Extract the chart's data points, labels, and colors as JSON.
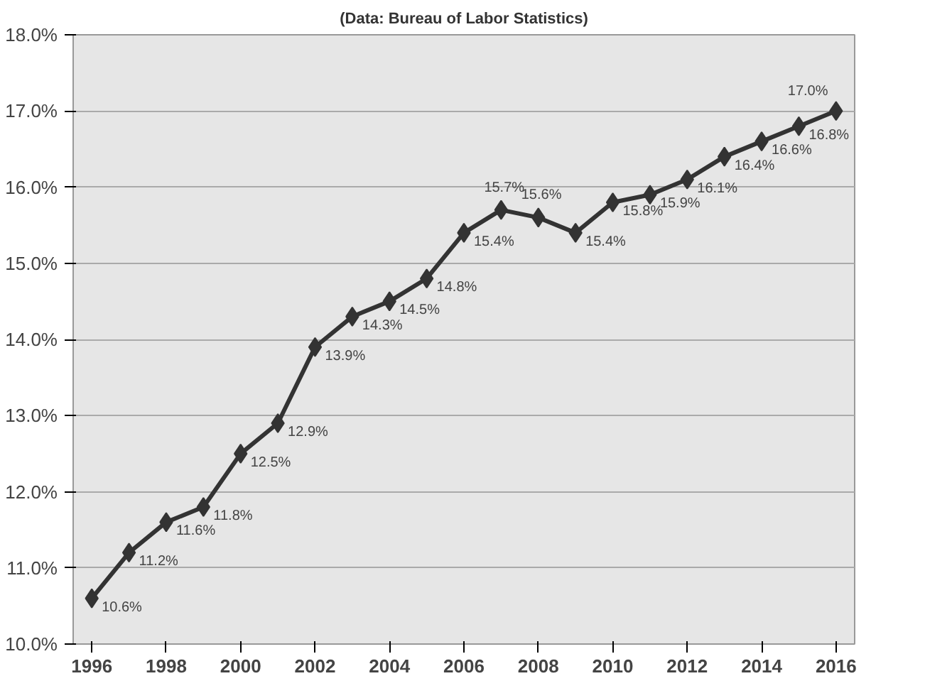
{
  "chart_data": {
    "type": "line",
    "subtitle": "(Data: Bureau of Labor Statistics)",
    "x": [
      1996,
      1997,
      1998,
      1999,
      2000,
      2001,
      2002,
      2003,
      2004,
      2005,
      2006,
      2007,
      2008,
      2009,
      2010,
      2011,
      2012,
      2013,
      2014,
      2015,
      2016
    ],
    "series": [
      {
        "color": "#333333",
        "values": [
          10.6,
          11.2,
          11.6,
          11.8,
          12.5,
          12.9,
          13.9,
          14.3,
          14.5,
          14.8,
          15.4,
          15.7,
          15.6,
          15.4,
          15.8,
          15.9,
          16.1,
          16.4,
          16.6,
          16.8,
          17.0
        ],
        "value_labels": [
          "10.6%",
          "11.2%",
          "11.6%",
          "11.8%",
          "12.5%",
          "12.9%",
          "13.9%",
          "14.3%",
          "14.5%",
          "14.8%",
          "15.4%",
          "15.7%",
          "15.6%",
          "15.4%",
          "15.8%",
          "15.9%",
          "16.1%",
          "16.4%",
          "16.6%",
          "16.8%",
          "17.0%"
        ]
      }
    ],
    "xlim": [
      1995.5,
      2016.5
    ],
    "xticks": [
      1996,
      1998,
      2000,
      2002,
      2004,
      2006,
      2008,
      2010,
      2012,
      2014,
      2016
    ],
    "ylim": [
      10,
      18
    ],
    "yticks": [
      {
        "value": 10,
        "label": "10.0%"
      },
      {
        "value": 11,
        "label": "11.0%"
      },
      {
        "value": 12,
        "label": "12.0%"
      },
      {
        "value": 13,
        "label": "13.0%"
      },
      {
        "value": 14,
        "label": "14.0%"
      },
      {
        "value": 15,
        "label": "15.0%"
      },
      {
        "value": 16,
        "label": "16.0%"
      },
      {
        "value": 17,
        "label": "17.0%"
      },
      {
        "value": 18,
        "label": "18.0%"
      }
    ],
    "grid": "y",
    "marker": "diamond",
    "line_style": "solid"
  }
}
